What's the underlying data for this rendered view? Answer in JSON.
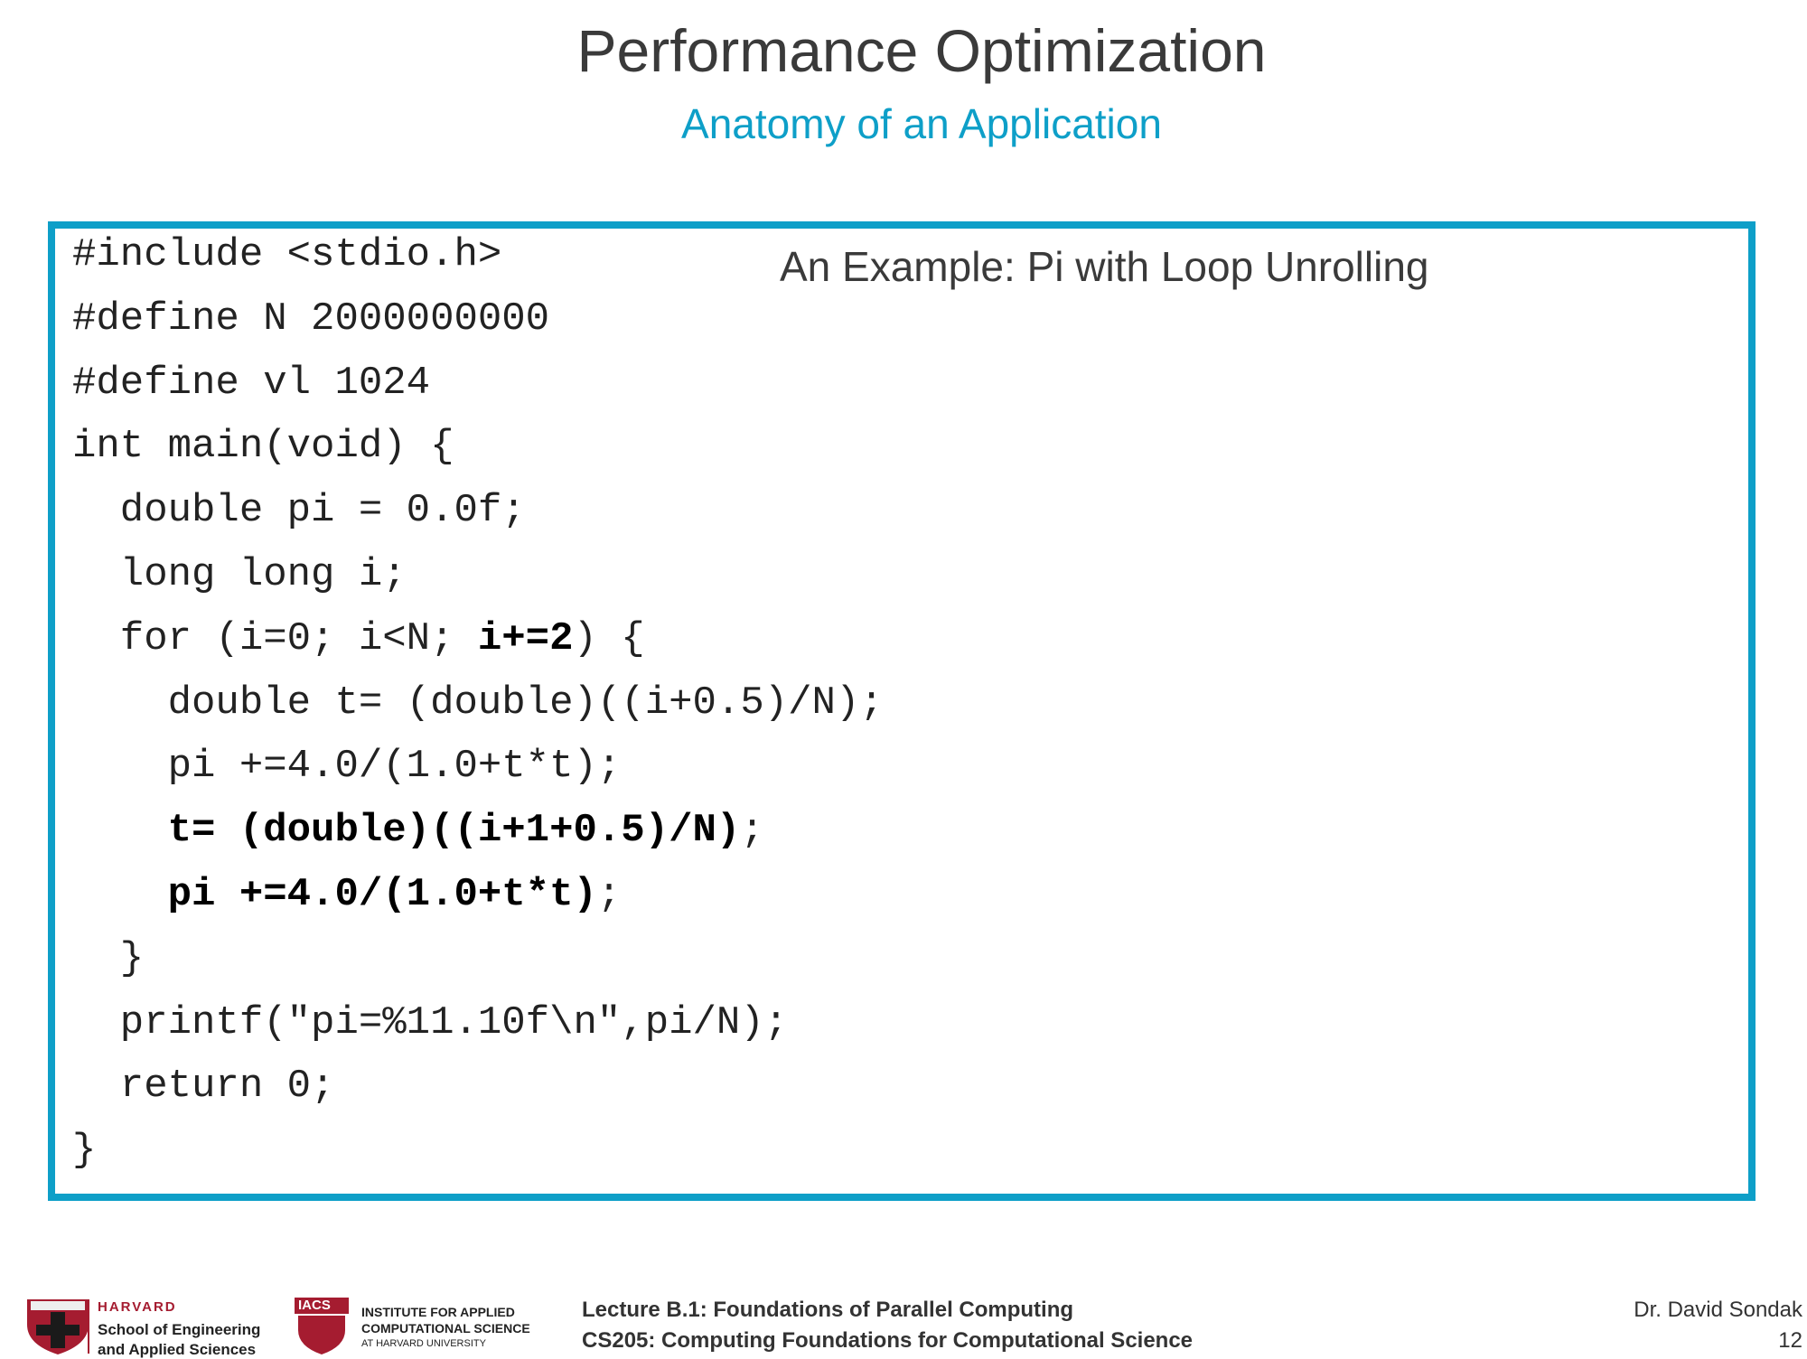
{
  "header": {
    "title": "Performance Optimization",
    "subtitle": "Anatomy of an Application"
  },
  "example_heading": "An Example: Pi with Loop Unrolling",
  "code": [
    [
      {
        "text": "#include <stdio.h>",
        "bold": false
      }
    ],
    [
      {
        "text": "#define N 2000000000",
        "bold": false
      }
    ],
    [
      {
        "text": "#define vl 1024",
        "bold": false
      }
    ],
    [
      {
        "text": "int main(void) {",
        "bold": false
      }
    ],
    [
      {
        "text": "  double pi = 0.0f;",
        "bold": false
      }
    ],
    [
      {
        "text": "  long long i;",
        "bold": false
      }
    ],
    [
      {
        "text": "  for (i=0; i<N; ",
        "bold": false
      },
      {
        "text": "i+=2",
        "bold": true
      },
      {
        "text": ") {",
        "bold": false
      }
    ],
    [
      {
        "text": "    double t= (double)((i+0.5)/N);",
        "bold": false
      }
    ],
    [
      {
        "text": "    pi +=4.0/(1.0+t*t);",
        "bold": false
      }
    ],
    [
      {
        "text": "    t= (double)((i+1+0.5)/N)",
        "bold": true
      },
      {
        "text": ";",
        "bold": false
      }
    ],
    [
      {
        "text": "    pi +=4.0/(1.0+t*t)",
        "bold": true
      },
      {
        "text": ";",
        "bold": false
      }
    ],
    [
      {
        "text": "  }",
        "bold": false
      }
    ],
    [
      {
        "text": "  printf(\"pi=%11.10f\\n\",pi/N);",
        "bold": false
      }
    ],
    [
      {
        "text": "  return 0;",
        "bold": false
      }
    ],
    [
      {
        "text": "}",
        "bold": false
      }
    ]
  ],
  "footer": {
    "lecture": "Lecture B.1: Foundations of Parallel Computing",
    "course": "CS205: Computing Foundations for Computational Science",
    "author": "Dr. David Sondak",
    "page": "12",
    "seas": [
      "HARVARD",
      "School of Engineering",
      "and Applied Sciences"
    ],
    "iacs": [
      "IACS",
      "INSTITUTE FOR APPLIED",
      "COMPUTATIONAL SCIENCE",
      "AT HARVARD UNIVERSITY"
    ]
  }
}
